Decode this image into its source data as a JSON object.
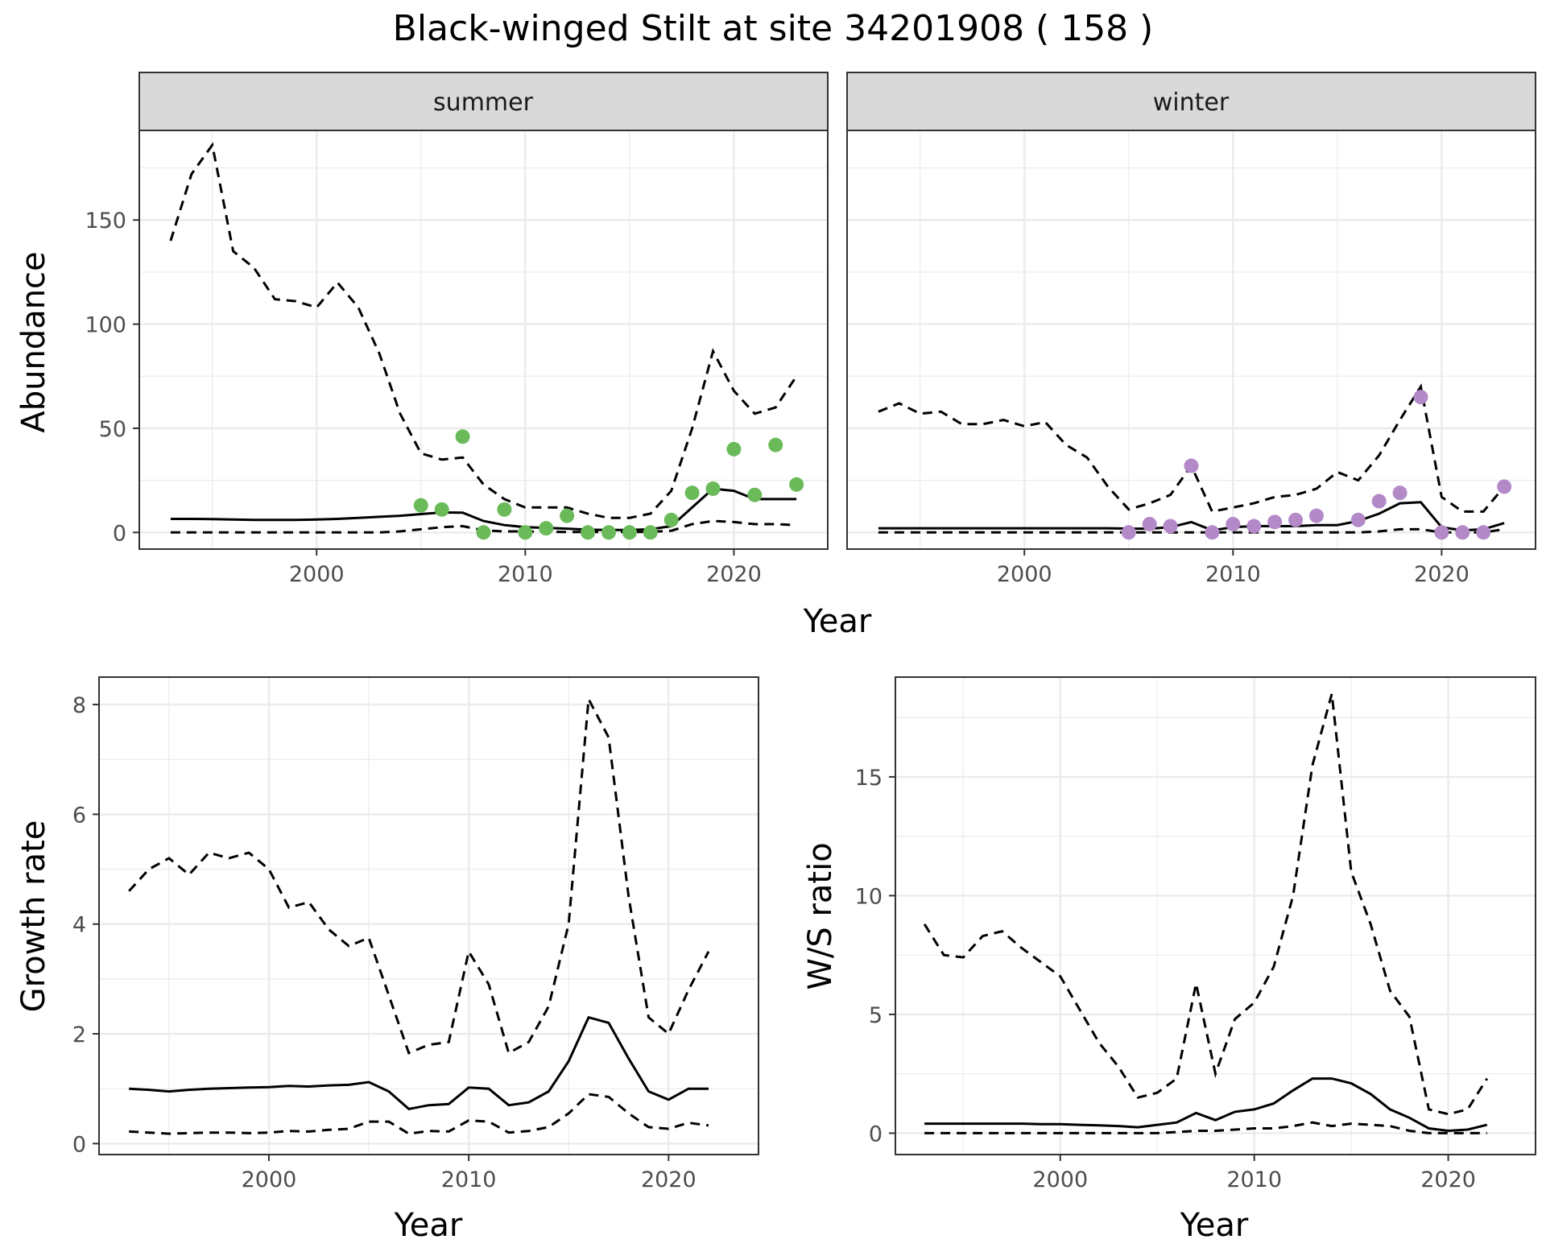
{
  "title": "Black-winged Stilt at site 34201908 ( 158 )",
  "colors": {
    "summer_points": "#6aba5a",
    "winter_points": "#b389c8",
    "line": "#000000"
  },
  "chart_data": [
    {
      "type": "line",
      "panel": "abundance",
      "facets": [
        "summer",
        "winter"
      ],
      "xlabel": "Year",
      "ylabel": "Abundance",
      "xlim": [
        1991.5,
        2024.5
      ],
      "ylim": [
        -8,
        193
      ],
      "xticks": [
        2000,
        2010,
        2020
      ],
      "yticks": [
        0,
        50,
        100,
        150
      ],
      "grid": true,
      "summer": {
        "x": [
          1993,
          1994,
          1995,
          1996,
          1997,
          1998,
          1999,
          2000,
          2001,
          2002,
          2003,
          2004,
          2005,
          2006,
          2007,
          2008,
          2009,
          2010,
          2011,
          2012,
          2013,
          2014,
          2015,
          2016,
          2017,
          2018,
          2019,
          2020,
          2021,
          2022,
          2023
        ],
        "estimate": [
          6.5,
          6.5,
          6.4,
          6.2,
          6,
          6,
          6,
          6.2,
          6.5,
          7,
          7.5,
          8,
          8.8,
          9.6,
          9.5,
          5.5,
          3.5,
          2.5,
          2.2,
          1.8,
          1.3,
          1.2,
          1.2,
          1.5,
          3,
          12,
          21,
          20,
          16,
          16,
          16
        ],
        "upper": [
          140,
          172,
          186,
          135,
          127,
          112,
          111,
          108,
          120,
          108,
          86,
          57,
          38,
          35,
          36,
          23,
          16,
          12,
          12,
          12,
          9,
          7,
          7,
          9,
          20,
          50,
          87,
          68,
          57,
          60,
          75
        ],
        "lower": [
          0,
          0,
          0,
          0,
          0,
          0,
          0,
          0,
          0,
          0,
          0,
          0.5,
          1.5,
          2.5,
          3,
          1,
          0.5,
          0.5,
          0.3,
          0.2,
          0.2,
          0.2,
          0.2,
          0.3,
          0.8,
          4,
          5.5,
          5,
          4,
          4,
          3.5
        ],
        "points_x": [
          2005,
          2006,
          2007,
          2008,
          2009,
          2010,
          2011,
          2012,
          2013,
          2014,
          2015,
          2016,
          2017,
          2018,
          2019,
          2020,
          2021,
          2022,
          2023
        ],
        "points_y": [
          13,
          11,
          46,
          0,
          11,
          0,
          2,
          8,
          0,
          0,
          0,
          0,
          6,
          19,
          21,
          40,
          18,
          42,
          23
        ]
      },
      "winter": {
        "x": [
          1993,
          1994,
          1995,
          1996,
          1997,
          1998,
          1999,
          2000,
          2001,
          2002,
          2003,
          2004,
          2005,
          2006,
          2007,
          2008,
          2009,
          2010,
          2011,
          2012,
          2013,
          2014,
          2015,
          2016,
          2017,
          2018,
          2019,
          2020,
          2021,
          2022,
          2023
        ],
        "estimate": [
          2,
          2,
          2,
          2,
          2,
          2,
          2,
          2,
          2,
          2,
          2,
          2,
          1.8,
          1.8,
          2.5,
          5,
          1,
          2.5,
          3,
          3,
          3,
          3.5,
          3.5,
          5.5,
          9,
          14,
          14.5,
          2.5,
          1,
          1.5,
          4.5
        ],
        "upper": [
          58,
          62,
          57,
          58,
          52,
          52,
          54,
          51,
          53,
          42,
          36,
          22,
          11,
          14,
          18,
          32,
          10,
          12,
          14,
          17,
          18,
          21,
          29,
          25,
          37,
          54,
          70,
          17,
          10,
          10,
          22
        ],
        "lower": [
          0,
          0,
          0,
          0,
          0,
          0,
          0,
          0,
          0,
          0,
          0,
          0,
          0,
          0,
          0,
          0,
          0,
          0,
          0,
          0,
          0,
          0,
          0,
          0,
          0.5,
          1.5,
          1.5,
          0,
          0,
          0,
          1.5
        ],
        "points_x": [
          2005,
          2006,
          2007,
          2008,
          2009,
          2010,
          2011,
          2012,
          2013,
          2014,
          2016,
          2017,
          2018,
          2019,
          2020,
          2021,
          2022,
          2023
        ],
        "points_y": [
          0,
          4,
          3,
          32,
          0,
          4,
          3,
          5,
          6,
          8,
          6,
          15,
          19,
          65,
          0,
          0,
          0,
          22
        ]
      }
    },
    {
      "type": "line",
      "panel": "growth",
      "xlabel": "Year",
      "ylabel": "Growth rate",
      "xlim": [
        1991.5,
        2024.5
      ],
      "ylim": [
        -0.2,
        8.5
      ],
      "xticks": [
        2000,
        2010,
        2020
      ],
      "yticks": [
        0,
        2,
        4,
        6,
        8
      ],
      "grid": true,
      "x": [
        1993,
        1994,
        1995,
        1996,
        1997,
        1998,
        1999,
        2000,
        2001,
        2002,
        2003,
        2004,
        2005,
        2006,
        2007,
        2008,
        2009,
        2010,
        2011,
        2012,
        2013,
        2014,
        2015,
        2016,
        2017,
        2018,
        2019,
        2020,
        2021,
        2022
      ],
      "estimate": [
        1,
        0.98,
        0.95,
        0.98,
        1,
        1.01,
        1.02,
        1.03,
        1.05,
        1.04,
        1.06,
        1.07,
        1.12,
        0.95,
        0.63,
        0.7,
        0.72,
        1.02,
        1,
        0.7,
        0.75,
        0.95,
        1.5,
        2.3,
        2.2,
        1.55,
        0.95,
        0.8,
        1,
        1
      ],
      "upper": [
        4.6,
        5,
        5.2,
        4.9,
        5.3,
        5.2,
        5.3,
        5,
        4.3,
        4.4,
        3.9,
        3.6,
        3.75,
        2.7,
        1.65,
        1.8,
        1.85,
        3.5,
        2.9,
        1.65,
        1.85,
        2.5,
        4,
        8.1,
        7.4,
        4.5,
        2.3,
        2,
        2.8,
        3.5
      ],
      "lower": [
        0.22,
        0.2,
        0.18,
        0.19,
        0.2,
        0.2,
        0.19,
        0.2,
        0.23,
        0.22,
        0.25,
        0.27,
        0.4,
        0.4,
        0.18,
        0.23,
        0.22,
        0.42,
        0.4,
        0.2,
        0.23,
        0.3,
        0.55,
        0.9,
        0.85,
        0.55,
        0.3,
        0.27,
        0.38,
        0.33
      ]
    },
    {
      "type": "line",
      "panel": "ratio",
      "xlabel": "Year",
      "ylabel": "W/S ratio",
      "xlim": [
        1991.5,
        2024.5
      ],
      "ylim": [
        -0.9,
        19.2
      ],
      "xticks": [
        2000,
        2010,
        2020
      ],
      "yticks": [
        0,
        5,
        10,
        15
      ],
      "grid": true,
      "x": [
        1993,
        1994,
        1995,
        1996,
        1997,
        1998,
        1999,
        2000,
        2001,
        2002,
        2003,
        2004,
        2005,
        2006,
        2007,
        2008,
        2009,
        2010,
        2011,
        2012,
        2013,
        2014,
        2015,
        2016,
        2017,
        2018,
        2019,
        2020,
        2021,
        2022
      ],
      "estimate": [
        0.4,
        0.4,
        0.4,
        0.4,
        0.4,
        0.4,
        0.38,
        0.38,
        0.35,
        0.33,
        0.3,
        0.25,
        0.35,
        0.45,
        0.85,
        0.55,
        0.9,
        1,
        1.25,
        1.8,
        2.3,
        2.3,
        2.1,
        1.65,
        1,
        0.65,
        0.2,
        0.1,
        0.15,
        0.35
      ],
      "upper": [
        8.8,
        7.5,
        7.4,
        8.3,
        8.5,
        7.8,
        7.2,
        6.6,
        5.2,
        3.8,
        2.8,
        1.5,
        1.7,
        2.3,
        6.3,
        2.5,
        4.8,
        5.5,
        7,
        10,
        15.5,
        18.5,
        11,
        8.8,
        6,
        4.9,
        1,
        0.8,
        1,
        2.3
      ],
      "lower": [
        0,
        0,
        0,
        0,
        0,
        0,
        0,
        0,
        0,
        0,
        0,
        0,
        0,
        0.05,
        0.1,
        0.1,
        0.15,
        0.2,
        0.2,
        0.3,
        0.45,
        0.3,
        0.4,
        0.35,
        0.3,
        0.1,
        0,
        0,
        0,
        0
      ]
    }
  ]
}
